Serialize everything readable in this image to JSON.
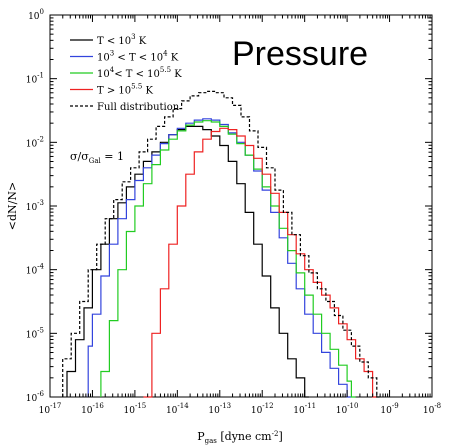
{
  "chart_data": {
    "type": "line",
    "title": "Pressure",
    "xlabel": {
      "base": "P",
      "sub": "gas",
      "unit": " [dyne cm",
      "sup": "-2",
      "close": "]"
    },
    "ylabel": "<dN/N>",
    "xscale": "log",
    "yscale": "log",
    "xlim": [
      1e-17,
      1e-08
    ],
    "ylim": [
      1e-06,
      1
    ],
    "x_tick_exponents": [
      -17,
      -16,
      -15,
      -14,
      -13,
      -12,
      -11,
      -10,
      -9,
      -8
    ],
    "y_tick_exponents": [
      0,
      -1,
      -2,
      -3,
      -4,
      -5,
      -6
    ],
    "tick_base": "10",
    "legend_position": "top-left",
    "annotation": {
      "sym": "σ/σ",
      "sub": "Gal",
      "rest": " = 1"
    },
    "series": [
      {
        "name": "T < 10^3 K",
        "legend": {
          "a": "T < 10",
          "a_sup": "3",
          "b": " K"
        },
        "color": "#000000",
        "dash": false,
        "points": [
          [
            -16.6,
            -5.6
          ],
          [
            -16.4,
            -5.1
          ],
          [
            -16.2,
            -4.6
          ],
          [
            -16.0,
            -4.0
          ],
          [
            -15.8,
            -3.6
          ],
          [
            -15.6,
            -3.2
          ],
          [
            -15.4,
            -2.95
          ],
          [
            -15.2,
            -2.7
          ],
          [
            -15.0,
            -2.5
          ],
          [
            -14.8,
            -2.3
          ],
          [
            -14.6,
            -2.15
          ],
          [
            -14.4,
            -2.0
          ],
          [
            -14.2,
            -1.88
          ],
          [
            -14.0,
            -1.8
          ],
          [
            -13.8,
            -1.75
          ],
          [
            -13.6,
            -1.75
          ],
          [
            -13.4,
            -1.8
          ],
          [
            -13.2,
            -1.9
          ],
          [
            -13.0,
            -2.05
          ],
          [
            -12.8,
            -2.3
          ],
          [
            -12.6,
            -2.65
          ],
          [
            -12.4,
            -3.1
          ],
          [
            -12.2,
            -3.6
          ],
          [
            -12.0,
            -4.1
          ],
          [
            -11.8,
            -4.6
          ],
          [
            -11.6,
            -5.0
          ],
          [
            -11.4,
            -5.4
          ],
          [
            -11.2,
            -5.7
          ],
          [
            -11.0,
            -6.0
          ]
        ]
      },
      {
        "name": "10^3 < T < 10^4 K",
        "legend": {
          "a": "10",
          "a_sup": "3",
          "b": " < T < 10",
          "b_sup": "4",
          "c": " K"
        },
        "color": "#3344dd",
        "dash": false,
        "points": [
          [
            -16.1,
            -5.2
          ],
          [
            -16.0,
            -4.7
          ],
          [
            -15.8,
            -4.1
          ],
          [
            -15.6,
            -3.6
          ],
          [
            -15.4,
            -3.2
          ],
          [
            -15.2,
            -2.9
          ],
          [
            -15.0,
            -2.6
          ],
          [
            -14.8,
            -2.4
          ],
          [
            -14.6,
            -2.2
          ],
          [
            -14.4,
            -2.02
          ],
          [
            -14.2,
            -1.88
          ],
          [
            -14.0,
            -1.78
          ],
          [
            -13.8,
            -1.7
          ],
          [
            -13.6,
            -1.65
          ],
          [
            -13.4,
            -1.63
          ],
          [
            -13.2,
            -1.65
          ],
          [
            -13.0,
            -1.72
          ],
          [
            -12.8,
            -1.85
          ],
          [
            -12.6,
            -2.0
          ],
          [
            -12.4,
            -2.2
          ],
          [
            -12.2,
            -2.45
          ],
          [
            -12.0,
            -2.75
          ],
          [
            -11.8,
            -3.1
          ],
          [
            -11.6,
            -3.5
          ],
          [
            -11.4,
            -3.9
          ],
          [
            -11.2,
            -4.3
          ],
          [
            -11.0,
            -4.7
          ],
          [
            -10.8,
            -5.0
          ],
          [
            -10.6,
            -5.3
          ],
          [
            -10.4,
            -5.55
          ],
          [
            -10.2,
            -5.8
          ],
          [
            -10.0,
            -6.0
          ]
        ]
      },
      {
        "name": "10^4 < T < 10^5.5 K",
        "legend": {
          "a": "10",
          "a_sup": "4",
          "b": "< T < 10",
          "b_sup": "5.5",
          "c": " K"
        },
        "color": "#22cc22",
        "dash": false,
        "points": [
          [
            -15.8,
            -5.6
          ],
          [
            -15.6,
            -4.8
          ],
          [
            -15.4,
            -4.0
          ],
          [
            -15.2,
            -3.4
          ],
          [
            -15.0,
            -3.0
          ],
          [
            -14.8,
            -2.65
          ],
          [
            -14.6,
            -2.35
          ],
          [
            -14.4,
            -2.12
          ],
          [
            -14.2,
            -1.95
          ],
          [
            -14.0,
            -1.82
          ],
          [
            -13.8,
            -1.73
          ],
          [
            -13.6,
            -1.68
          ],
          [
            -13.4,
            -1.66
          ],
          [
            -13.2,
            -1.68
          ],
          [
            -13.0,
            -1.75
          ],
          [
            -12.8,
            -1.87
          ],
          [
            -12.6,
            -2.02
          ],
          [
            -12.4,
            -2.2
          ],
          [
            -12.2,
            -2.42
          ],
          [
            -12.0,
            -2.7
          ],
          [
            -11.8,
            -3.0
          ],
          [
            -11.6,
            -3.35
          ],
          [
            -11.4,
            -3.7
          ],
          [
            -11.2,
            -4.05
          ],
          [
            -11.0,
            -4.4
          ],
          [
            -10.8,
            -4.7
          ],
          [
            -10.6,
            -5.0
          ],
          [
            -10.4,
            -5.25
          ],
          [
            -10.2,
            -5.5
          ],
          [
            -10.0,
            -5.75
          ],
          [
            -9.9,
            -6.0
          ]
        ]
      },
      {
        "name": "T > 10^5.5 K",
        "legend": {
          "a": "T > 10",
          "a_sup": "5.5",
          "b": " K"
        },
        "color": "#ee2222",
        "dash": false,
        "points": [
          [
            -14.8,
            -6.0
          ],
          [
            -14.6,
            -5.0
          ],
          [
            -14.4,
            -4.3
          ],
          [
            -14.2,
            -3.6
          ],
          [
            -14.0,
            -3.0
          ],
          [
            -13.8,
            -2.5
          ],
          [
            -13.6,
            -2.15
          ],
          [
            -13.4,
            -1.95
          ],
          [
            -13.2,
            -1.83
          ],
          [
            -13.0,
            -1.78
          ],
          [
            -12.8,
            -1.8
          ],
          [
            -12.6,
            -1.9
          ],
          [
            -12.4,
            -2.05
          ],
          [
            -12.2,
            -2.25
          ],
          [
            -12.0,
            -2.5
          ],
          [
            -11.8,
            -2.8
          ],
          [
            -11.6,
            -3.1
          ],
          [
            -11.4,
            -3.45
          ],
          [
            -11.2,
            -3.75
          ],
          [
            -11.0,
            -4.0
          ],
          [
            -10.8,
            -4.2
          ],
          [
            -10.6,
            -4.4
          ],
          [
            -10.4,
            -4.6
          ],
          [
            -10.2,
            -4.85
          ],
          [
            -10.0,
            -5.1
          ],
          [
            -9.8,
            -5.4
          ],
          [
            -9.6,
            -5.6
          ],
          [
            -9.4,
            -6.0
          ]
        ]
      },
      {
        "name": "Full distribution",
        "legend": {
          "a": "Full distribution"
        },
        "color": "#000000",
        "dash": true,
        "points": [
          [
            -16.7,
            -5.4
          ],
          [
            -16.5,
            -5.0
          ],
          [
            -16.3,
            -4.5
          ],
          [
            -16.1,
            -4.0
          ],
          [
            -15.9,
            -3.6
          ],
          [
            -15.7,
            -3.2
          ],
          [
            -15.5,
            -2.9
          ],
          [
            -15.3,
            -2.62
          ],
          [
            -15.1,
            -2.4
          ],
          [
            -14.9,
            -2.15
          ],
          [
            -14.7,
            -1.95
          ],
          [
            -14.5,
            -1.75
          ],
          [
            -14.3,
            -1.6
          ],
          [
            -14.1,
            -1.47
          ],
          [
            -13.9,
            -1.35
          ],
          [
            -13.7,
            -1.27
          ],
          [
            -13.5,
            -1.22
          ],
          [
            -13.3,
            -1.2
          ],
          [
            -13.1,
            -1.22
          ],
          [
            -12.9,
            -1.3
          ],
          [
            -12.7,
            -1.42
          ],
          [
            -12.5,
            -1.6
          ],
          [
            -12.3,
            -1.82
          ],
          [
            -12.1,
            -2.08
          ],
          [
            -11.9,
            -2.4
          ],
          [
            -11.7,
            -2.75
          ],
          [
            -11.5,
            -3.1
          ],
          [
            -11.3,
            -3.45
          ],
          [
            -11.1,
            -3.78
          ],
          [
            -10.9,
            -4.05
          ],
          [
            -10.7,
            -4.3
          ],
          [
            -10.5,
            -4.5
          ],
          [
            -10.3,
            -4.72
          ],
          [
            -10.1,
            -4.95
          ],
          [
            -9.9,
            -5.2
          ],
          [
            -9.7,
            -5.45
          ],
          [
            -9.5,
            -5.7
          ],
          [
            -9.3,
            -6.0
          ]
        ]
      }
    ]
  }
}
